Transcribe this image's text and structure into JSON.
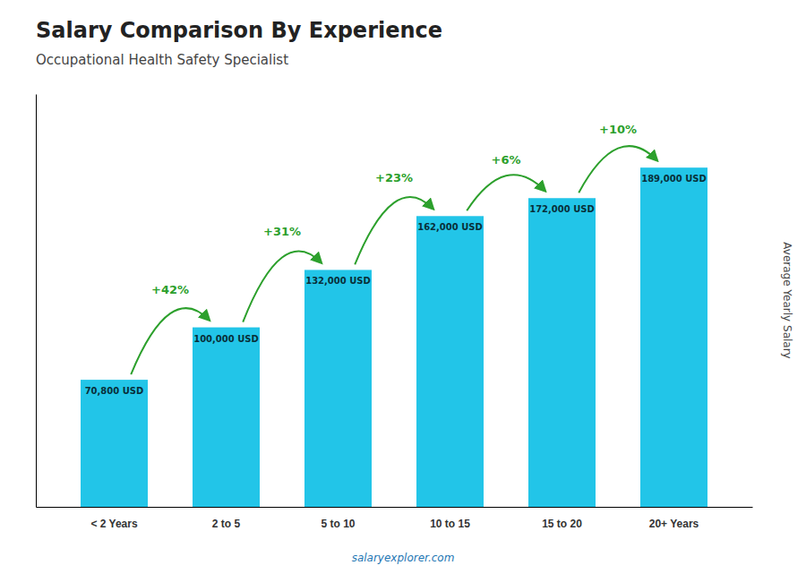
{
  "chart_data": {
    "type": "bar",
    "title": "Salary Comparison By Experience",
    "subtitle": "Occupational Health Safety Specialist",
    "ylabel": "Average Yearly Salary",
    "source": "salaryexplorer.com",
    "categories": [
      "< 2 Years",
      "2 to 5",
      "5 to 10",
      "10 to 15",
      "15 to 20",
      "20+ Years"
    ],
    "values": [
      70800,
      100000,
      132000,
      162000,
      172000,
      189000
    ],
    "value_labels": [
      "70,800 USD",
      "100,000 USD",
      "132,000 USD",
      "162,000 USD",
      "172,000 USD",
      "189,000 USD"
    ],
    "data_labels": true,
    "annotations": [
      "+42%",
      "+31%",
      "+23%",
      "+6%",
      "+10%"
    ],
    "color": "#22c5e8",
    "ylim": [
      0,
      230000
    ],
    "tick_labels": "x",
    "grid": false
  }
}
